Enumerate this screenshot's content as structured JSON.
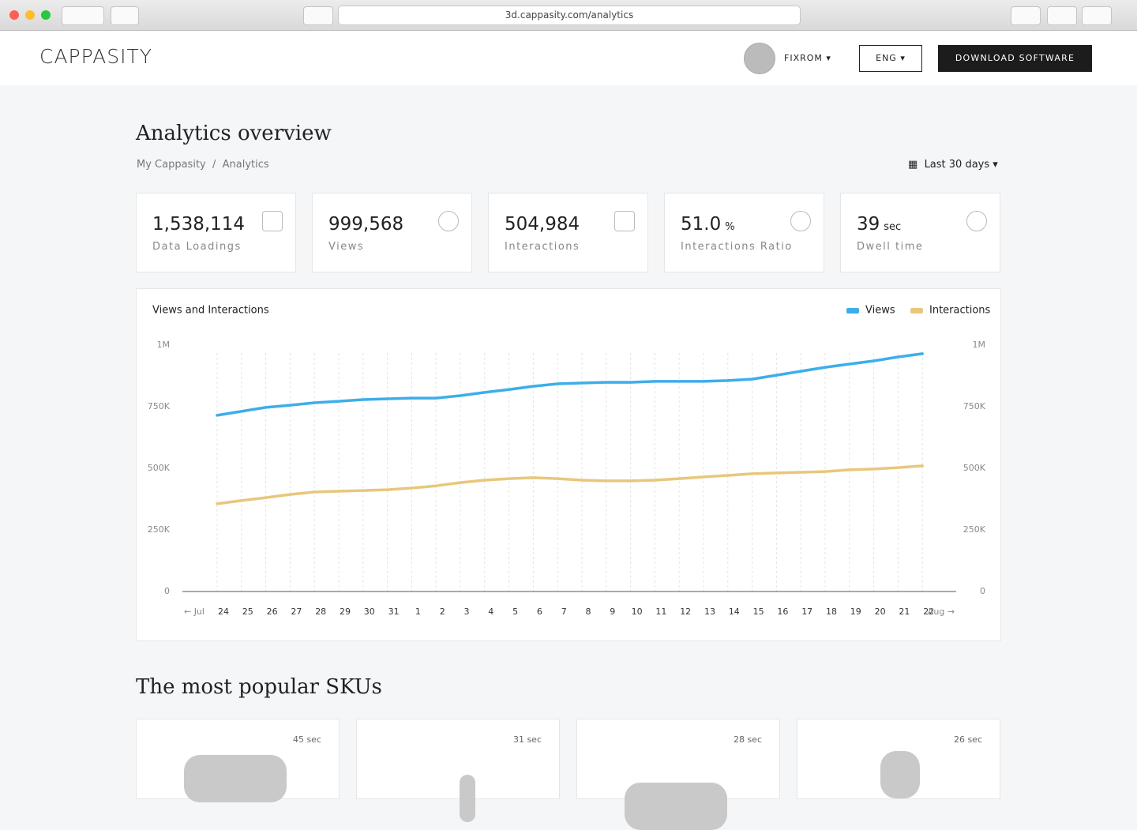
{
  "browser": {
    "url": "3d.cappasity.com/analytics"
  },
  "header": {
    "logo": "CAPPASITY",
    "user": "FIXROM",
    "language": "ENG",
    "download_button": "DOWNLOAD SOFTWARE"
  },
  "page": {
    "title": "Analytics overview",
    "breadcrumb": [
      "My Cappasity",
      "Analytics"
    ],
    "date_range": "Last 30 days"
  },
  "stats": [
    {
      "value": "1,538,114",
      "label": "Data Loadings"
    },
    {
      "value": "999,568",
      "label": "Views"
    },
    {
      "value": "504,984",
      "label": "Interactions"
    },
    {
      "value": "51.0",
      "unit": "%",
      "label": "Interactions Ratio"
    },
    {
      "value": "39",
      "unit": "sec",
      "label": "Dwell time"
    }
  ],
  "chart_data": {
    "type": "line",
    "title": "Views and Interactions",
    "x_start_label": "← Jul",
    "x_end_label": "Aug →",
    "categories": [
      "24",
      "25",
      "26",
      "27",
      "28",
      "29",
      "30",
      "31",
      "1",
      "2",
      "3",
      "4",
      "5",
      "6",
      "7",
      "8",
      "9",
      "10",
      "11",
      "12",
      "13",
      "14",
      "15",
      "16",
      "17",
      "18",
      "19",
      "20",
      "21",
      "22"
    ],
    "series": [
      {
        "name": "Views",
        "color": "#3daee9",
        "values": [
          715000,
          731000,
          747000,
          756000,
          766000,
          772000,
          779000,
          782000,
          785000,
          785000,
          795000,
          808000,
          820000,
          833000,
          843000,
          846000,
          849000,
          849000,
          853000,
          853000,
          853000,
          856000,
          862000,
          878000,
          894000,
          910000,
          923000,
          936000,
          952000,
          965000
        ]
      },
      {
        "name": "Interactions",
        "color": "#e8c77c",
        "values": [
          356000,
          369000,
          381000,
          394000,
          404000,
          407000,
          410000,
          413000,
          420000,
          429000,
          442000,
          452000,
          458000,
          462000,
          458000,
          452000,
          449000,
          449000,
          452000,
          458000,
          465000,
          471000,
          478000,
          481000,
          484000,
          487000,
          494000,
          497000,
          503000,
          510000
        ]
      }
    ],
    "ylim": [
      0,
      1000000
    ],
    "yticks": [
      0,
      {
        "value": 250000,
        "label": "250K"
      },
      {
        "value": 500000,
        "label": "500K"
      },
      {
        "value": 750000,
        "label": "750K"
      },
      {
        "value": 1000000,
        "label": "1M"
      }
    ],
    "y2lim": [
      0,
      1000000
    ],
    "y2ticks": [
      0,
      {
        "value": 250000,
        "label": "250K"
      },
      {
        "value": 500000,
        "label": "500K"
      },
      {
        "value": 750000,
        "label": "750K"
      },
      {
        "value": 1000000,
        "label": "1M"
      }
    ],
    "grid": "vertical",
    "legend": "top-right"
  },
  "skus": {
    "title": "The most popular SKUs",
    "items": [
      {
        "time": "45 sec"
      },
      {
        "time": "31 sec"
      },
      {
        "time": "28 sec"
      },
      {
        "time": "26 sec"
      }
    ]
  }
}
